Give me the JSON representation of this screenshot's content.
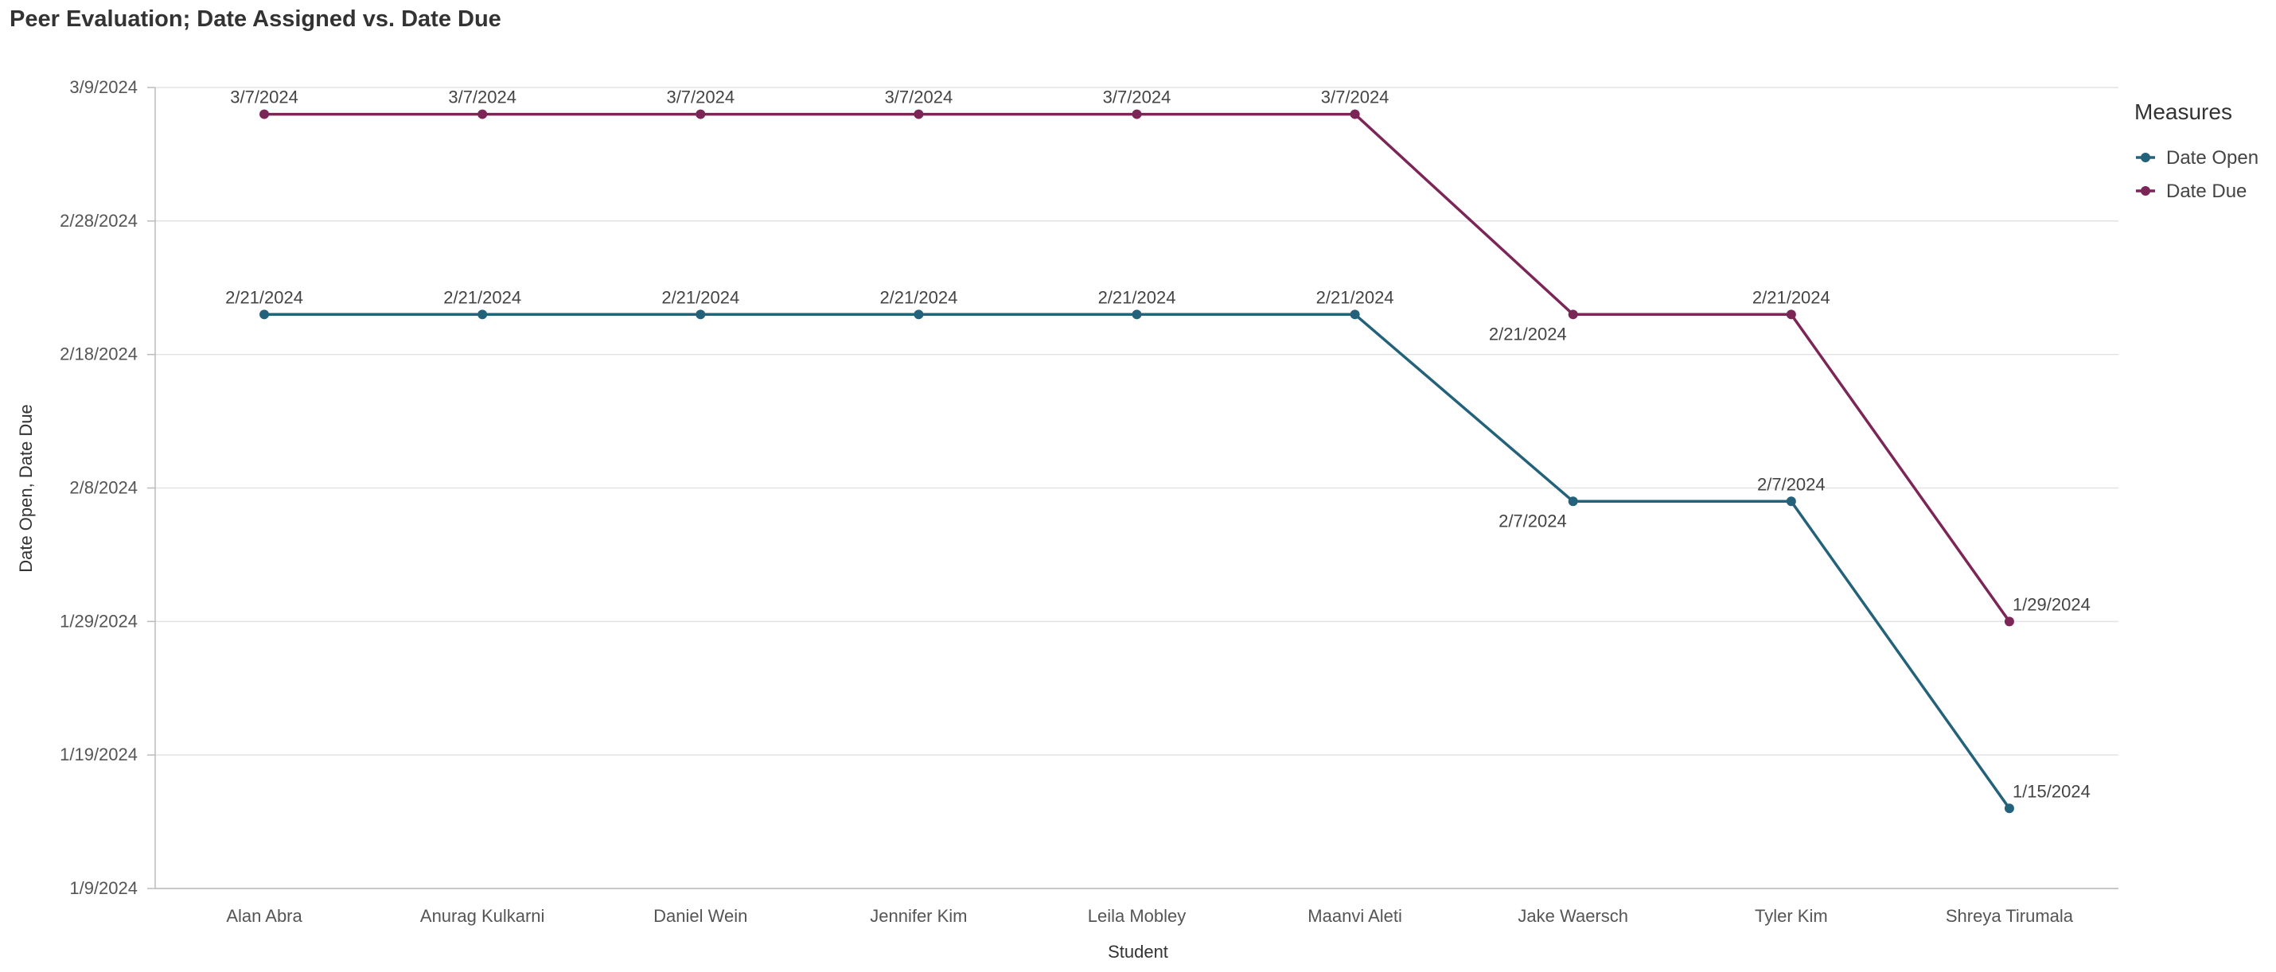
{
  "chart_data": {
    "type": "line",
    "title": "Peer Evaluation; Date Assigned vs. Date Due",
    "xlabel": "Student",
    "ylabel": "Date Open, Date Due",
    "categories": [
      "Alan Abra",
      "Anurag Kulkarni",
      "Daniel Wein",
      "Jennifer Kim",
      "Leila Mobley",
      "Maanvi Aleti",
      "Jake Waersch",
      "Tyler Kim",
      "Shreya Tirumala"
    ],
    "y_ticks": [
      "1/9/2024",
      "1/19/2024",
      "1/29/2024",
      "2/8/2024",
      "2/18/2024",
      "2/28/2024",
      "3/9/2024"
    ],
    "ylim": [
      "2024-01-09",
      "2024-03-09"
    ],
    "grid": true,
    "legend": {
      "title": "Measures",
      "position": "right"
    },
    "series": [
      {
        "name": "Date Open",
        "color": "#23627a",
        "values": [
          "2024-02-21",
          "2024-02-21",
          "2024-02-21",
          "2024-02-21",
          "2024-02-21",
          "2024-02-21",
          "2024-02-07",
          "2024-02-07",
          "2024-01-15"
        ],
        "labels": [
          "2/21/2024",
          "2/21/2024",
          "2/21/2024",
          "2/21/2024",
          "2/21/2024",
          "2/21/2024",
          "2/7/2024",
          "2/7/2024",
          "1/15/2024"
        ],
        "label_pos": [
          "above",
          "above",
          "above",
          "above",
          "above",
          "above",
          "below-left",
          "above",
          "above-right"
        ]
      },
      {
        "name": "Date Due",
        "color": "#7b2657",
        "values": [
          "2024-03-07",
          "2024-03-07",
          "2024-03-07",
          "2024-03-07",
          "2024-03-07",
          "2024-03-07",
          "2024-02-21",
          "2024-02-21",
          "2024-01-29"
        ],
        "labels": [
          "3/7/2024",
          "3/7/2024",
          "3/7/2024",
          "3/7/2024",
          "3/7/2024",
          "3/7/2024",
          "2/21/2024",
          "2/21/2024",
          "1/29/2024"
        ],
        "label_pos": [
          "above",
          "above",
          "above",
          "above",
          "above",
          "above",
          "below-left",
          "above",
          "above-right"
        ]
      }
    ]
  }
}
